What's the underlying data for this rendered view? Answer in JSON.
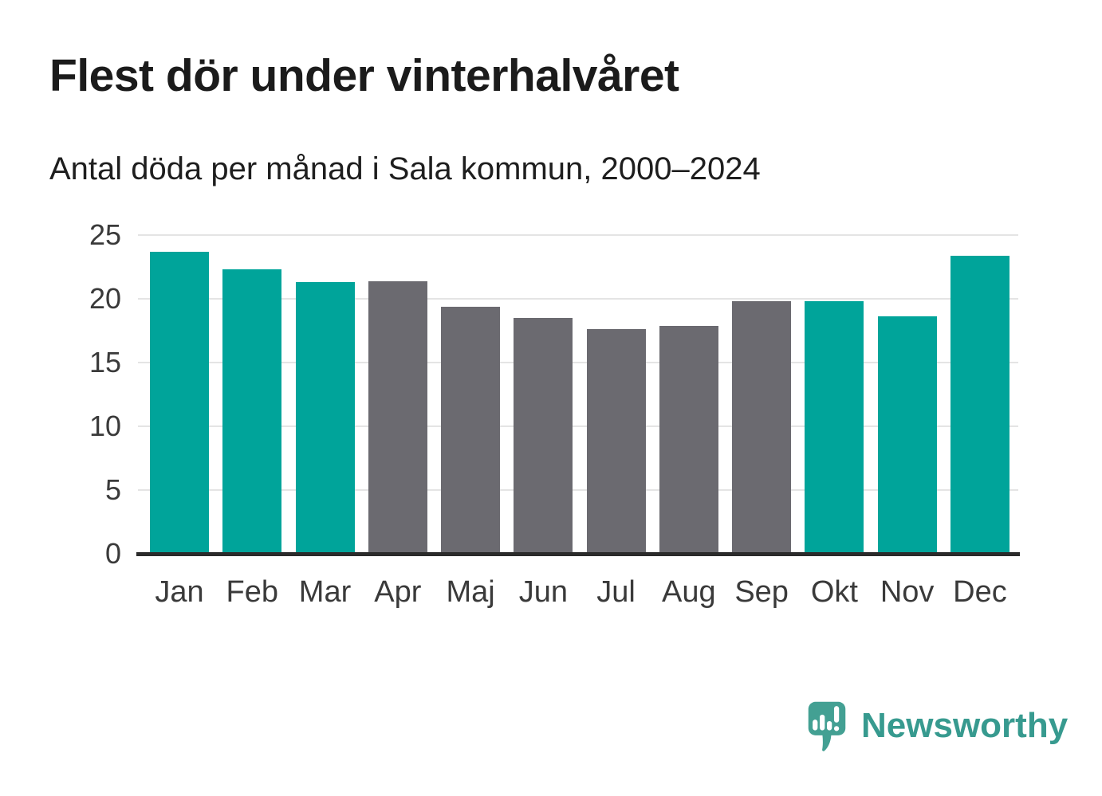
{
  "header": {
    "title": "Flest dör under vinterhalvåret",
    "subtitle": "Antal döda per månad i Sala kommun, 2000–2024"
  },
  "chart_data": {
    "type": "bar",
    "categories": [
      "Jan",
      "Feb",
      "Mar",
      "Apr",
      "Maj",
      "Jun",
      "Jul",
      "Aug",
      "Sep",
      "Okt",
      "Nov",
      "Dec"
    ],
    "values": [
      23.7,
      22.3,
      21.3,
      21.4,
      19.4,
      18.5,
      17.6,
      17.9,
      19.8,
      19.8,
      18.6,
      23.4
    ],
    "highlight": [
      true,
      true,
      true,
      false,
      false,
      false,
      false,
      false,
      false,
      true,
      true,
      true
    ],
    "title": "Flest dör under vinterhalvåret",
    "subtitle": "Antal döda per månad i Sala kommun, 2000–2024",
    "xlabel": "",
    "ylabel": "",
    "ylim": [
      0,
      25
    ],
    "yticks": [
      25,
      20,
      15,
      10,
      5,
      0
    ],
    "grid": "horizontal",
    "legend": "none",
    "colors": {
      "highlight_bar": "#00a49a",
      "default_bar": "#6b6a70",
      "gridline": "#e4e4e4",
      "axis_line": "#2b2b2b"
    }
  },
  "footer": {
    "brand": "Newsworthy",
    "logo_icon": "speech-bubble-bar-chart-exclamation",
    "brand_color": "#379a8f",
    "logo_mark_color": "#43a093"
  }
}
